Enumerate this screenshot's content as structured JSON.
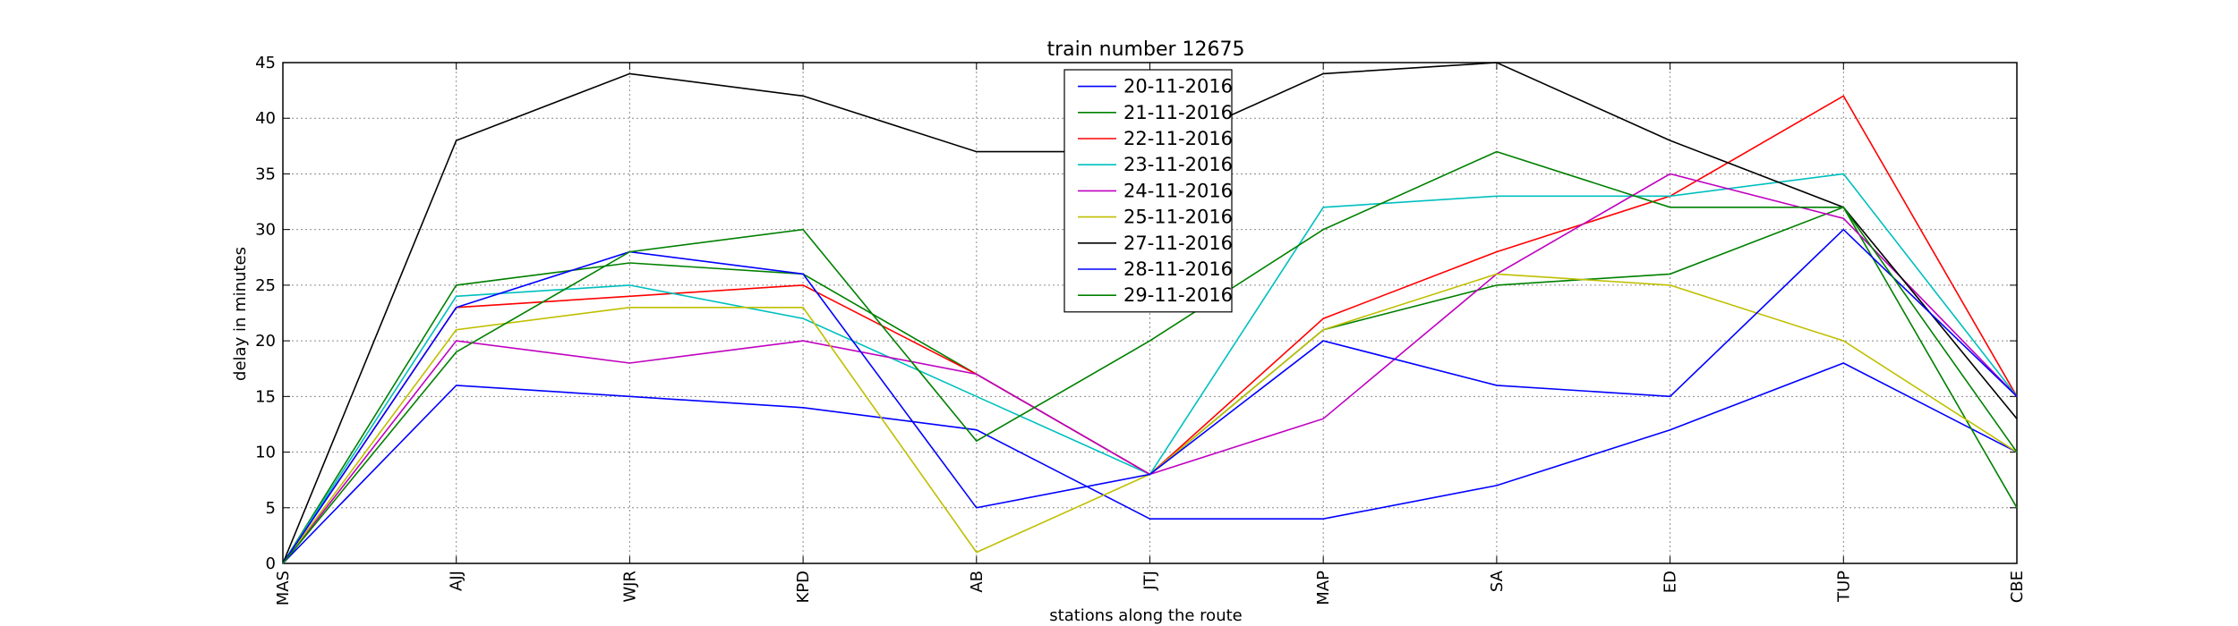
{
  "chart_data": {
    "type": "line",
    "title": "train number 12675",
    "xlabel": "stations along the route",
    "ylabel": "delay in minutes",
    "categories": [
      "MAS",
      "AJJ",
      "WJR",
      "KPD",
      "AB",
      "JTJ",
      "MAP",
      "SA",
      "ED",
      "TUP",
      "CBE"
    ],
    "ylim": [
      0,
      45
    ],
    "yticks": [
      0,
      5,
      10,
      15,
      20,
      25,
      30,
      35,
      40,
      45
    ],
    "grid": true,
    "legend_position": "top-center",
    "series": [
      {
        "name": "20-11-2016",
        "color": "#0000ff",
        "values": [
          0,
          16,
          15,
          14,
          12,
          4,
          4,
          7,
          12,
          18,
          10
        ]
      },
      {
        "name": "21-11-2016",
        "color": "#008000",
        "values": [
          0,
          25,
          27,
          26,
          17,
          8,
          21,
          25,
          26,
          32,
          5
        ]
      },
      {
        "name": "22-11-2016",
        "color": "#ff0000",
        "values": [
          0,
          23,
          24,
          25,
          17,
          8,
          22,
          28,
          33,
          42,
          15
        ]
      },
      {
        "name": "23-11-2016",
        "color": "#00bfbf",
        "values": [
          0,
          24,
          25,
          22,
          15,
          8,
          32,
          33,
          33,
          35,
          15
        ]
      },
      {
        "name": "24-11-2016",
        "color": "#bf00bf",
        "values": [
          0,
          20,
          18,
          20,
          17,
          8,
          13,
          26,
          35,
          31,
          15
        ]
      },
      {
        "name": "25-11-2016",
        "color": "#bfbf00",
        "values": [
          0,
          21,
          23,
          23,
          1,
          8,
          21,
          26,
          25,
          20,
          10
        ]
      },
      {
        "name": "27-11-2016",
        "color": "#000000",
        "values": [
          0,
          38,
          44,
          42,
          37,
          37,
          44,
          45,
          38,
          32,
          13
        ]
      },
      {
        "name": "28-11-2016",
        "color": "#0000ff",
        "values": [
          0,
          23,
          28,
          26,
          5,
          8,
          20,
          16,
          15,
          30,
          15
        ]
      },
      {
        "name": "29-11-2016",
        "color": "#008000",
        "values": [
          0,
          19,
          28,
          30,
          11,
          20,
          30,
          37,
          32,
          32,
          10
        ]
      }
    ]
  }
}
